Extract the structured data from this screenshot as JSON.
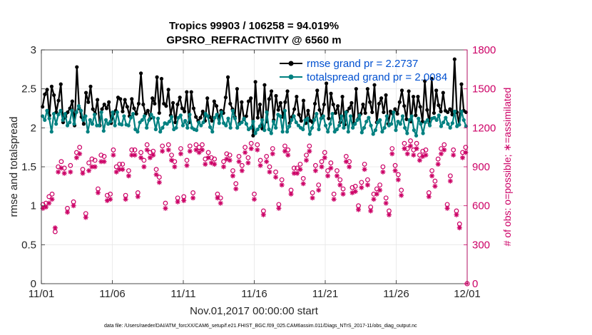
{
  "chart_data": {
    "type": "line",
    "title_line1": "Tropics 99903 / 106258 = 94.019%",
    "title_line2": "GPSRO_REFRACTIVITY @ 6560 m",
    "xlabel": "Nov.01,2017 00:00:00 start",
    "ylabel_left": "rmse and totalspread",
    "ylabel_right": "# of obs: o=possible; ∗=assimilated",
    "footnote": "data file: /Users/raeder/DAI/ATM_forcXX/CAM6_setup/f.e21.FHIST_BGC.f09_025.CAM6assim.011/Diags_NTrS_2017-11/obs_diag_output.nc",
    "x_range": [
      0,
      30
    ],
    "x_ticks": [
      0,
      5,
      10,
      15,
      20,
      25,
      30
    ],
    "x_tick_labels": [
      "11/01",
      "11/06",
      "11/11",
      "11/16",
      "11/21",
      "11/26",
      "12/01"
    ],
    "y_left_range": [
      0,
      3
    ],
    "y_left_ticks": [
      0,
      0.5,
      1,
      1.5,
      2,
      2.5,
      3
    ],
    "y_left_tick_labels": [
      "0",
      "0.5",
      "1",
      "1.5",
      "2",
      "2.5",
      "3"
    ],
    "y_right_range": [
      0,
      1800
    ],
    "y_right_ticks": [
      0,
      300,
      600,
      900,
      1200,
      1500,
      1800
    ],
    "y_right_tick_labels": [
      "0",
      "300",
      "600",
      "900",
      "1200",
      "1500",
      "1800"
    ],
    "grid": true,
    "legend": [
      {
        "name": "rmse grand pr = 2.2737",
        "color": "#000000",
        "marker": "circle"
      },
      {
        "name": "totalspread grand pr = 2.0084",
        "color": "#008080",
        "marker": "circle"
      }
    ],
    "series": [
      {
        "name": "rmse",
        "axis": "left",
        "color": "#000000",
        "values": [
          2.27,
          2.43,
          2.49,
          2.16,
          2.53,
          2.42,
          2.2,
          2.35,
          2.56,
          2.07,
          2.14,
          2.2,
          2.25,
          2.34,
          2.03,
          2.78,
          2.25,
          2.14,
          2.05,
          2.45,
          2.33,
          2.53,
          2.24,
          2.18,
          2.36,
          2.03,
          2.24,
          2.3,
          2.25,
          2.33,
          2.06,
          2.18,
          2.22,
          2.39,
          2.37,
          2.21,
          2.36,
          2.27,
          2.15,
          2.37,
          2.25,
          2.18,
          2.31,
          2.7,
          2.3,
          2.18,
          2.22,
          2.12,
          2.38,
          2.31,
          2.65,
          2.19,
          2.63,
          2.31,
          2.28,
          2.49,
          2.16,
          2.32,
          2.07,
          2.3,
          2.39,
          2.25,
          2.21,
          2.46,
          2.07,
          2.46,
          2.25,
          2.14,
          2.09,
          2.13,
          2.21,
          2.09,
          2.38,
          2.14,
          2.09,
          2.34,
          2.28,
          2.12,
          2.22,
          2.19,
          2.39,
          2.65,
          2.31,
          2.24,
          2.14,
          2.5,
          2.06,
          2.33,
          2.11,
          2.15,
          2.34,
          2.38,
          1.9,
          2.59,
          2.13,
          2.3,
          1.99,
          2.55,
          2.08,
          2.37,
          2.47,
          2.1,
          2.41,
          2.23,
          2.32,
          2.14,
          2.33,
          2.47,
          2.06,
          2.14,
          2.24,
          2.4,
          2.17,
          2.09,
          2.35,
          2.06,
          2.22,
          2.09,
          2.07,
          2.31,
          2.48,
          2.23,
          2.13,
          2.3,
          2.57,
          2.12,
          2.44,
          2.3,
          2.19,
          2.28,
          2.07,
          2.4,
          2.04,
          2.21,
          2.25,
          2.32,
          2.06,
          2.5,
          2.12,
          2.18,
          2.3,
          2.19,
          2.5,
          2.33,
          2.2,
          2.55,
          2.07,
          2.31,
          2.38,
          2.2,
          2.42,
          2.05,
          2.21,
          2.18,
          2.24,
          2.18,
          2.33,
          2.48,
          2.28,
          2.11,
          2.47,
          2.08,
          2.4,
          2.16,
          2.4,
          2.27,
          2.08,
          2.6,
          2.23,
          2.06,
          2.63,
          2.19,
          2.48,
          2.29,
          2.21,
          2.45,
          2.22,
          2.2,
          2.24,
          2.17,
          2.88,
          2.2,
          2.04,
          2.56,
          2.22,
          2.2
        ]
      },
      {
        "name": "totalspread",
        "axis": "left",
        "color": "#008080",
        "values": [
          2.15,
          2.1,
          2.22,
          2.12,
          1.95,
          2.18,
          2.05,
          2.17,
          2.22,
          2.1,
          2.18,
          2.03,
          2.07,
          2.22,
          2.05,
          2.2,
          2.28,
          2.22,
          2.1,
          2.15,
          1.95,
          2.1,
          2.05,
          2.17,
          2.03,
          2.03,
          2.2,
          1.96,
          2.1,
          2.05,
          2.08,
          2.2,
          2.03,
          2.2,
          2.05,
          2.04,
          2.15,
          2.04,
          2.03,
          2.13,
          2.18,
          1.98,
          1.95,
          2.07,
          2.1,
          2.15,
          2.0,
          2.1,
          2.17,
          2.13,
          1.98,
          2.12,
          1.95,
          2.0,
          2.06,
          2.05,
          2.08,
          2.14,
          1.98,
          2.0,
          2.13,
          2.16,
          2.03,
          2.09,
          2.0,
          2.17,
          2.0,
          1.98,
          1.97,
          2.07,
          2.03,
          2.07,
          2.18,
          2.15,
          2.01,
          1.95,
          2.13,
          2.17,
          2.06,
          2.2,
          2.06,
          2.03,
          2.12,
          2.0,
          2.22,
          2.12,
          2.0,
          2.05,
          2.07,
          2.12,
          2.05,
          1.98,
          2.0,
          2.08,
          1.93,
          1.98,
          2.02,
          2.1,
          1.97,
          2.2,
          1.98,
          1.93,
          2.08,
          2.0,
          2.17,
          2.15,
          1.95,
          2.22,
          1.95,
          2.02,
          2.1,
          2.15,
          2.07,
          2.03,
          2.0,
          1.98,
          2.1,
          2.12,
          1.92,
          2.0,
          2.1,
          2.18,
          1.98,
          2.12,
          2.15,
          2.03,
          1.95,
          2.05,
          2.18,
          1.95,
          1.98,
          2.03,
          2.15,
          2.0,
          2.2,
          1.95,
          2.15,
          2.0,
          2.05,
          2.1,
          2.16,
          1.94,
          2.0,
          2.08,
          2.13,
          2.03,
          1.92,
          1.97,
          2.07,
          2.1,
          1.95,
          2.0,
          2.15,
          2.03,
          2.05,
          2.2,
          1.97,
          2.08,
          2.05,
          2.15,
          2.0,
          1.93,
          2.1,
          2.15,
          1.97,
          1.9,
          2.12,
          2.05,
          1.93,
          2.07,
          2.1,
          2.03,
          2.12,
          2.13,
          2.1,
          2.16,
          2.02,
          2.07,
          2.13,
          2.05,
          2.0,
          2.06,
          2.21,
          2.02,
          2.04,
          2.21,
          2.1,
          2.02
        ]
      },
      {
        "name": "possible",
        "axis": "right",
        "color": "#cc0066",
        "marker": "o",
        "values": [
          610,
          620,
          670,
          690,
          400,
          900,
          940,
          890,
          580,
          910,
          630,
          1010,
          1050,
          880,
          540,
          930,
          960,
          950,
          730,
          990,
          980,
          680,
          690,
          1030,
          900,
          920,
          920,
          680,
          870,
          1030,
          1030,
          700,
          1010,
          950,
          1070,
          1010,
          1020,
          880,
          820,
          1060,
          620,
          1070,
          990,
          940,
          660,
          1040,
          670,
          950,
          1060,
          700,
          1070,
          1050,
          1070,
          960,
          1010,
          970,
          960,
          690,
          660,
          940,
          1000,
          990,
          870,
          770,
          980,
          910,
          1050,
          970,
          1080,
          690,
          1070,
          950,
          560,
          980,
          900,
          1040,
          860,
          610,
          800,
          1060,
          1030,
          720,
          890,
          890,
          920,
          810,
          990,
          1060,
          700,
          910,
          760,
          940,
          1010,
          870,
          930,
          690,
          870,
          800,
          730,
          980,
          940,
          740,
          750,
          600,
          780,
          920,
          800,
          590,
          690,
          730,
          760,
          900,
          660,
          560,
          1040,
          910,
          840,
          720,
          1080,
          1040,
          1100,
          1030,
          1080,
          990,
          1020,
          1030,
          700,
          870,
          790,
          960,
          1040,
          1070,
          610,
          830,
          1030,
          560,
          460,
          1010,
          1050
        ]
      },
      {
        "name": "assimilated",
        "axis": "right",
        "color": "#cc0066",
        "marker": "*",
        "values": [
          580,
          590,
          620,
          650,
          430,
          860,
          890,
          850,
          550,
          860,
          600,
          970,
          1000,
          850,
          510,
          870,
          900,
          900,
          700,
          940,
          940,
          640,
          650,
          990,
          860,
          880,
          880,
          650,
          830,
          990,
          990,
          670,
          970,
          900,
          1030,
          970,
          990,
          840,
          780,
          1020,
          580,
          1030,
          950,
          900,
          630,
          1000,
          640,
          910,
          1020,
          660,
          1030,
          1010,
          1030,
          920,
          970,
          930,
          920,
          660,
          620,
          900,
          960,
          950,
          830,
          730,
          940,
          870,
          1010,
          930,
          1040,
          650,
          1030,
          910,
          530,
          940,
          860,
          1000,
          820,
          580,
          760,
          1020,
          990,
          690,
          850,
          850,
          880,
          770,
          950,
          1020,
          660,
          870,
          720,
          900,
          970,
          830,
          890,
          650,
          830,
          760,
          690,
          940,
          900,
          700,
          710,
          570,
          740,
          880,
          760,
          560,
          650,
          690,
          720,
          860,
          620,
          530,
          1000,
          870,
          800,
          680,
          1040,
          1000,
          1060,
          990,
          1040,
          950,
          980,
          990,
          670,
          830,
          750,
          920,
          1000,
          1030,
          580,
          790,
          990,
          530,
          430,
          970,
          1010
        ]
      }
    ]
  }
}
